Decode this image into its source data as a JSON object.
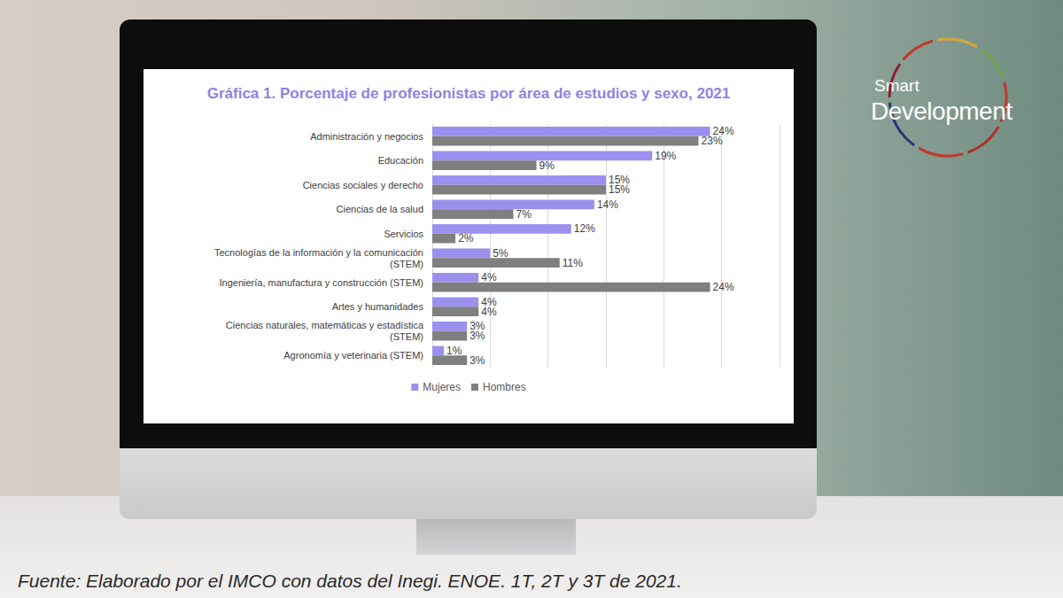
{
  "chart_data": {
    "type": "bar",
    "orientation": "horizontal",
    "title": "Gráfica 1. Porcentaje de profesionistas por área de estudios y sexo, 2021",
    "categories": [
      "Administración y negocios",
      "Educación",
      "Ciencias sociales y derecho",
      "Ciencias de la salud",
      "Servicios",
      "Tecnologías de la información y la comunicación\n(STEM)",
      "Ingeniería, manufactura y construcción (STEM)",
      "Artes y humanidades",
      "Ciencias naturales, matemáticas y estadística\n(STEM)",
      "Agronomía y veterinaria (STEM)"
    ],
    "series": [
      {
        "name": "Mujeres",
        "color": "#9b90ee",
        "values": [
          24,
          19,
          15,
          14,
          12,
          5,
          4,
          4,
          3,
          1
        ],
        "value_labels": [
          "24%",
          "19%",
          "15%",
          "14%",
          "12%",
          "5%",
          "4%",
          "4%",
          "3%",
          "1%"
        ]
      },
      {
        "name": "Hombres",
        "color": "#7f7f7f",
        "values": [
          23,
          9,
          15,
          7,
          2,
          11,
          24,
          4,
          3,
          3
        ],
        "value_labels": [
          "23%",
          "9%",
          "15%",
          "7%",
          "2%",
          "11%",
          "24%",
          "4%",
          "3%",
          "3%"
        ]
      }
    ],
    "xlim": [
      0,
      30
    ],
    "xticks": [
      0,
      5,
      10,
      15,
      20,
      25,
      30
    ],
    "grid": true,
    "legend": "bottom",
    "data_labels": true,
    "tick_labels": "y"
  },
  "source": "Fuente: Elaborado por el IMCO con datos del Inegi. ENOE. 1T, 2T y 3T de 2021.",
  "logo": [
    "Smart",
    "Development"
  ]
}
